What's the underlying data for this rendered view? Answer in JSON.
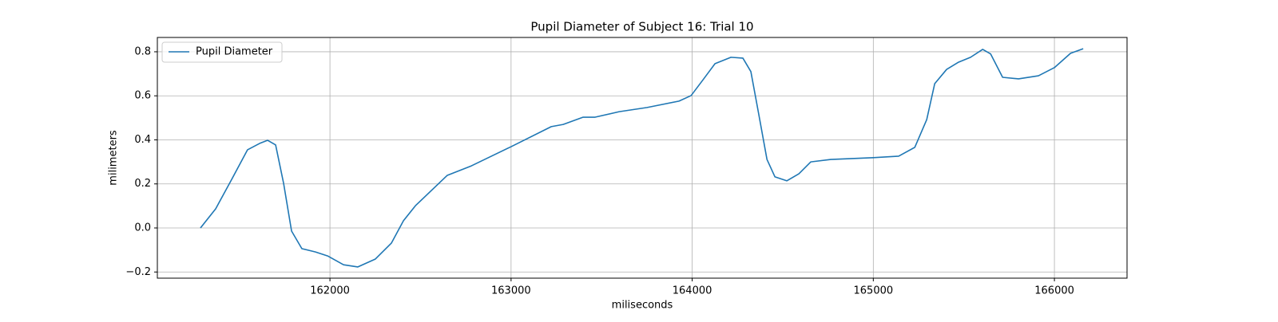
{
  "chart_data": {
    "type": "line",
    "title": "Pupil Diameter of Subject 16: Trial 10",
    "x_label": "miliseconds",
    "y_label": "milimeters",
    "x": [
      161285,
      161369,
      161457,
      161545,
      161612,
      161656,
      161700,
      161744,
      161788,
      161845,
      161920,
      161987,
      162075,
      162154,
      162251,
      162339,
      162406,
      162472,
      162648,
      162781,
      163000,
      163222,
      163288,
      163398,
      163464,
      163597,
      163751,
      163927,
      163994,
      164060,
      164126,
      164214,
      164280,
      164324,
      164369,
      164413,
      164457,
      164523,
      164589,
      164655,
      164765,
      165000,
      165140,
      165229,
      165295,
      165339,
      165405,
      165471,
      165537,
      165604,
      165648,
      165714,
      165802,
      165912,
      166000,
      166089,
      166159
    ],
    "series": [
      {
        "name": "Pupil Diameter",
        "color": "#1f77b4",
        "values": [
          0,
          0.087,
          0.22,
          0.355,
          0.384,
          0.398,
          0.377,
          0.203,
          -0.014,
          -0.094,
          -0.109,
          -0.127,
          -0.167,
          -0.177,
          -0.141,
          -0.069,
          0.033,
          0.101,
          0.239,
          0.282,
          0.369,
          0.46,
          0.47,
          0.503,
          0.503,
          0.528,
          0.547,
          0.576,
          0.601,
          0.673,
          0.746,
          0.775,
          0.771,
          0.71,
          0.51,
          0.311,
          0.232,
          0.214,
          0.246,
          0.3,
          0.311,
          0.319,
          0.326,
          0.366,
          0.492,
          0.655,
          0.72,
          0.753,
          0.775,
          0.811,
          0.79,
          0.684,
          0.677,
          0.691,
          0.728,
          0.793,
          0.814
        ]
      }
    ],
    "xlim": [
      161047,
      166401
    ],
    "xticks": [
      162000,
      163000,
      164000,
      165000,
      166000
    ],
    "ylim": [
      -0.228,
      0.865
    ],
    "yticks": [
      {
        "value": -0.2,
        "label": "−0.2"
      },
      {
        "value": 0,
        "label": "0.0"
      },
      0.2,
      0.4,
      0.6,
      0.8
    ],
    "grid": true,
    "legend": "upper-left"
  }
}
